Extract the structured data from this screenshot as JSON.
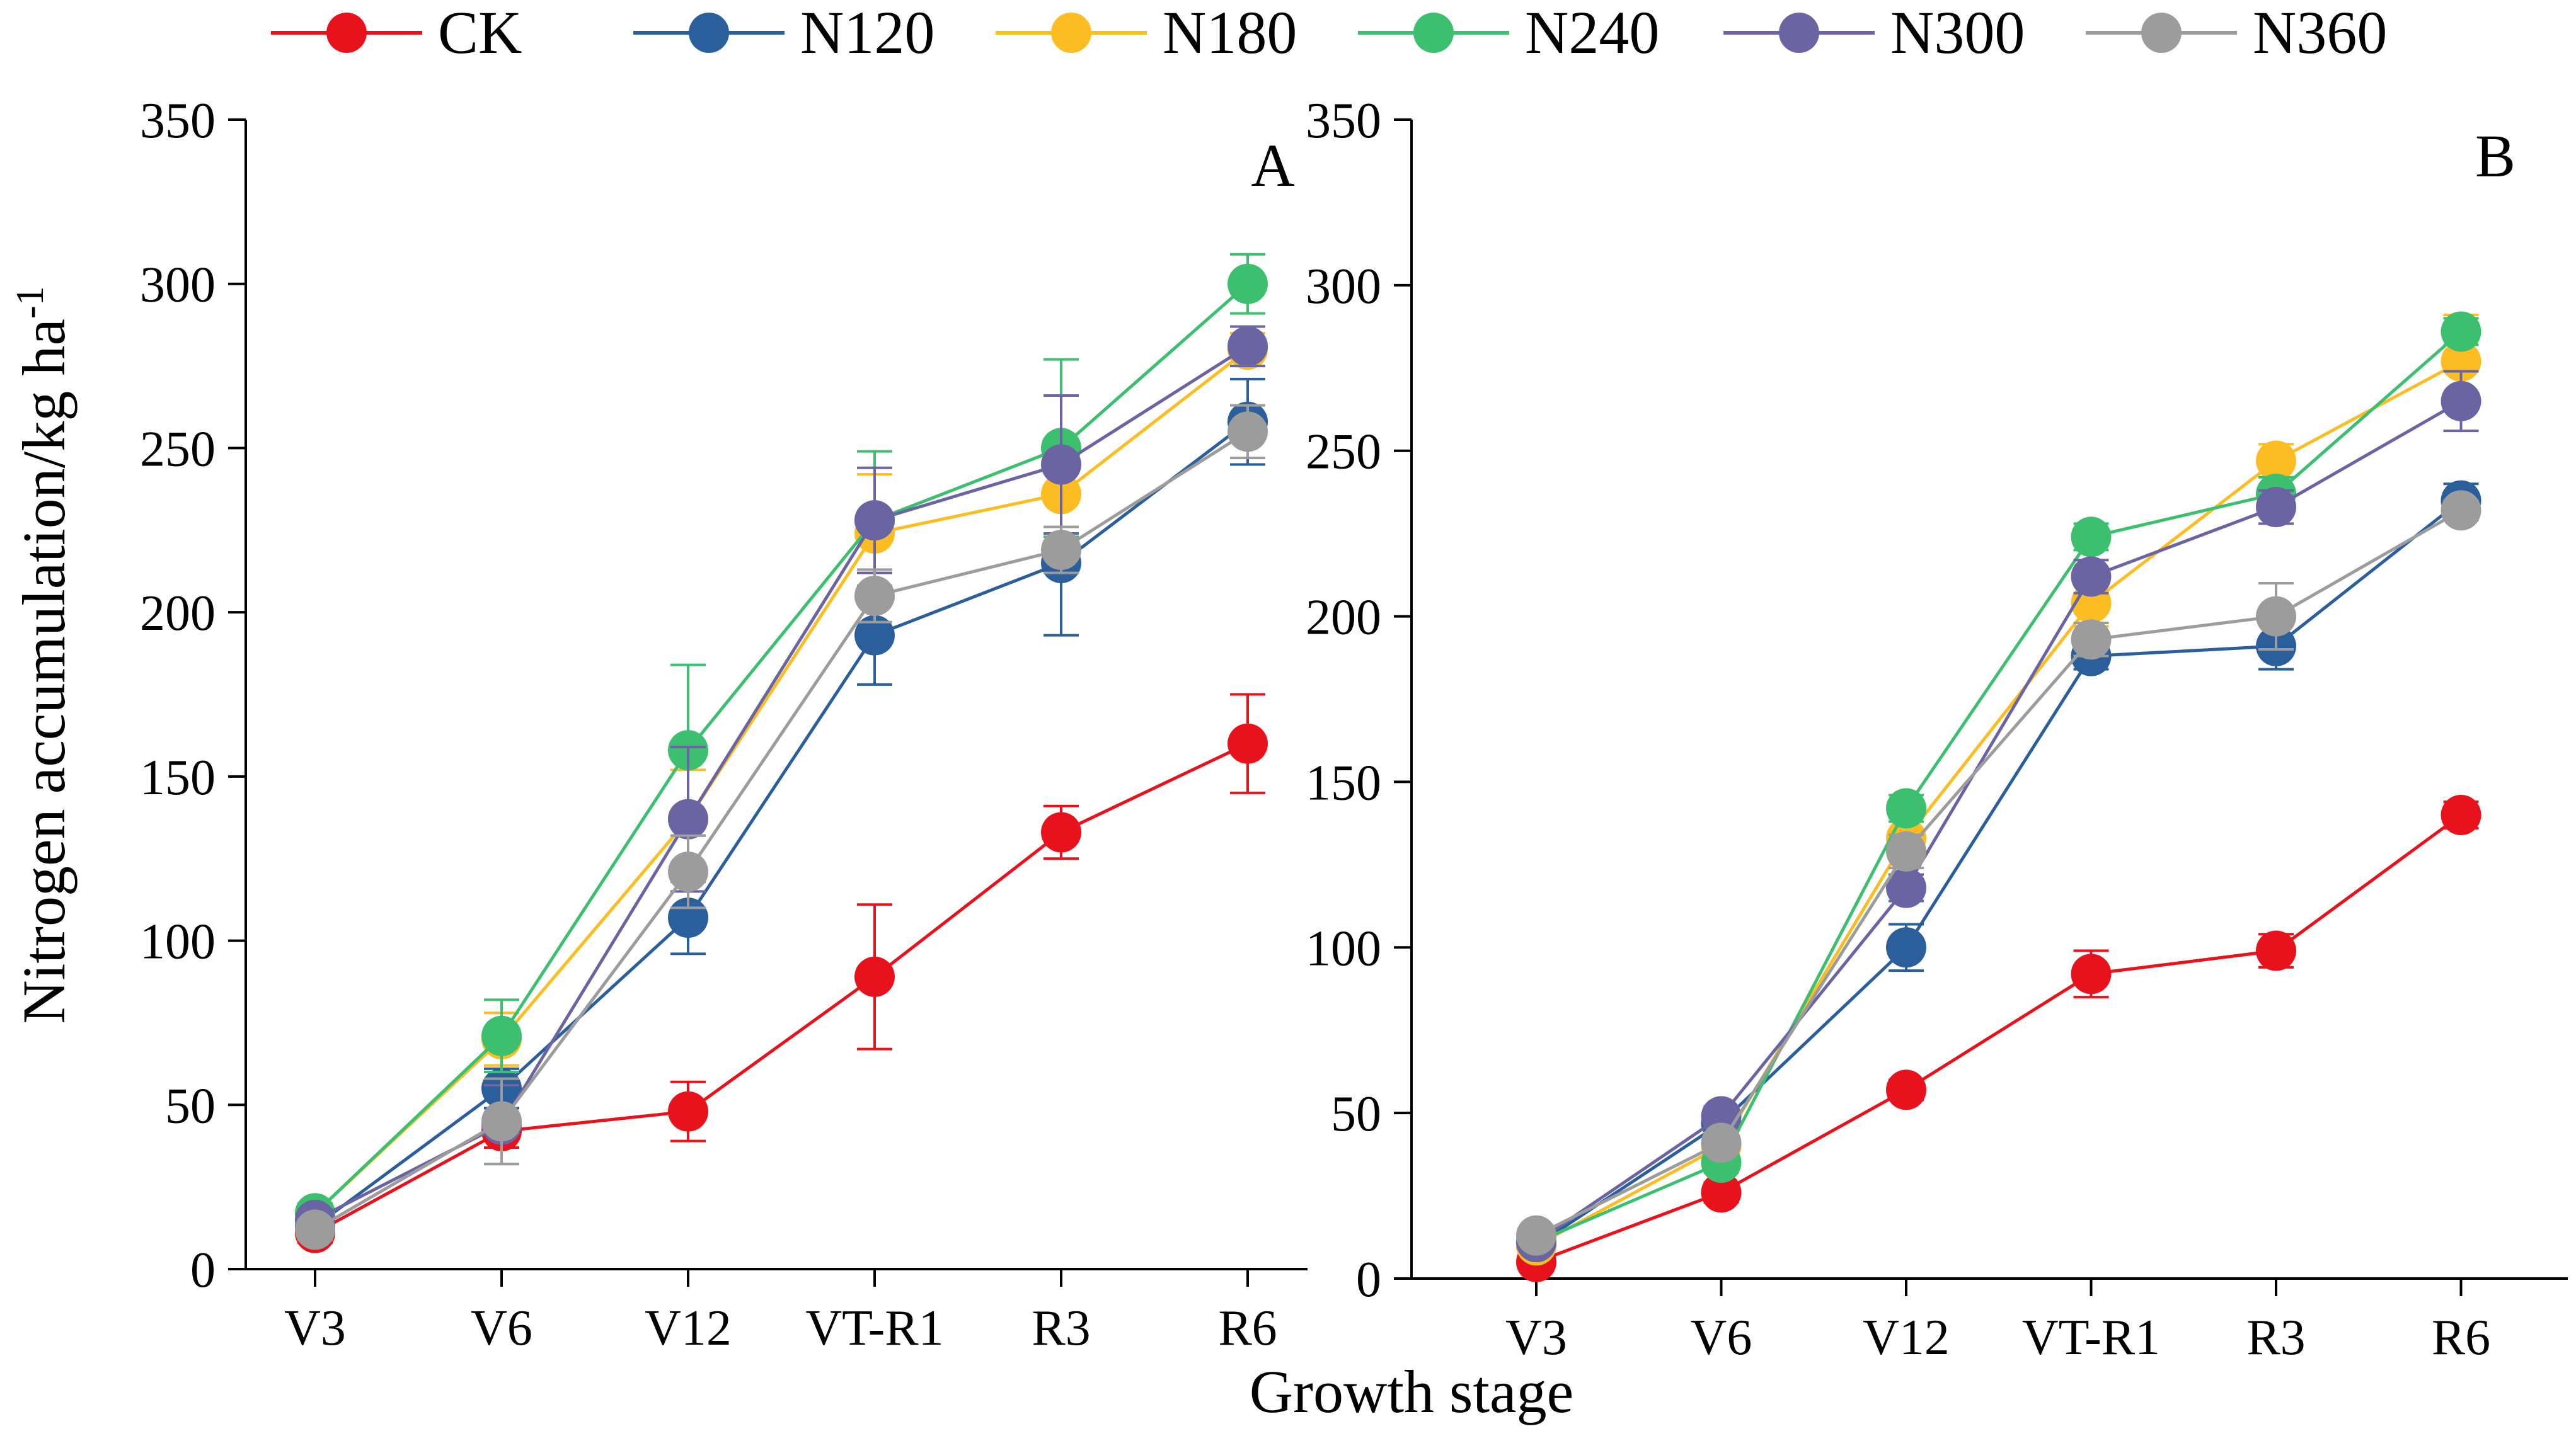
{
  "figure": {
    "ylabel_main": "Nitrogen accumulation/kg ha",
    "ylabel_sup": "-1",
    "xlabel": "Growth stage"
  },
  "legend": [
    {
      "name": "CK",
      "color": "#e8121c"
    },
    {
      "name": "N120",
      "color": "#2b5f9c"
    },
    {
      "name": "N180",
      "color": "#fcbd23"
    },
    {
      "name": "N240",
      "color": "#3cbf6e"
    },
    {
      "name": "N300",
      "color": "#6a64a3"
    },
    {
      "name": "N360",
      "color": "#9c9c9c"
    }
  ],
  "chart_data": [
    {
      "type": "line",
      "panel_label": "A",
      "categories": [
        "V3",
        "V6",
        "V12",
        "VT-R1",
        "R3",
        "R6"
      ],
      "ylim": [
        0,
        350
      ],
      "yticks": [
        0,
        50,
        100,
        150,
        200,
        250,
        300,
        350
      ],
      "series": [
        {
          "name": "CK",
          "values": [
            11,
            42,
            48,
            89,
            133,
            160
          ],
          "errors": [
            3,
            5,
            9,
            22,
            8,
            15
          ]
        },
        {
          "name": "N120",
          "values": [
            13,
            55,
            107,
            193,
            215,
            258
          ],
          "errors": [
            3,
            6,
            11,
            15,
            22,
            13
          ]
        },
        {
          "name": "N180",
          "values": [
            17,
            70,
            137,
            224,
            236,
            280
          ],
          "errors": [
            3,
            8,
            15,
            18,
            16,
            5
          ]
        },
        {
          "name": "N240",
          "values": [
            17,
            71,
            158,
            228,
            250,
            300
          ],
          "errors": [
            3,
            11,
            26,
            21,
            27,
            9
          ]
        },
        {
          "name": "N300",
          "values": [
            15,
            44,
            137,
            228,
            245,
            281
          ],
          "errors": [
            3,
            12,
            22,
            16,
            21,
            6
          ]
        },
        {
          "name": "N360",
          "values": [
            12,
            45,
            121,
            205,
            219,
            255
          ],
          "errors": [
            3,
            13,
            11,
            8,
            7,
            8
          ]
        }
      ]
    },
    {
      "type": "line",
      "panel_label": "B",
      "categories": [
        "V3",
        "V6",
        "V12",
        "VT-R1",
        "R3",
        "R6"
      ],
      "ylim": [
        0,
        350
      ],
      "yticks": [
        0,
        50,
        100,
        150,
        200,
        250,
        300,
        350
      ],
      "series": [
        {
          "name": "CK",
          "values": [
            5,
            26,
            57,
            92,
            99,
            140
          ],
          "errors": [
            2,
            3,
            3,
            7,
            5,
            4
          ]
        },
        {
          "name": "N120",
          "values": [
            10,
            47,
            100,
            188,
            191,
            235
          ],
          "errors": [
            2,
            3,
            7,
            4,
            7,
            5
          ]
        },
        {
          "name": "N180",
          "values": [
            10,
            40,
            133,
            204,
            247,
            277
          ],
          "errors": [
            2,
            4,
            6,
            7,
            5,
            14
          ]
        },
        {
          "name": "N240",
          "values": [
            11,
            35,
            142,
            224,
            237,
            286
          ],
          "errors": [
            2,
            3,
            4,
            4,
            5,
            4
          ]
        },
        {
          "name": "N300",
          "values": [
            11,
            49,
            118,
            212,
            233,
            265
          ],
          "errors": [
            2,
            3,
            4,
            5,
            5,
            9
          ]
        },
        {
          "name": "N360",
          "values": [
            13,
            41,
            129,
            193,
            200,
            232
          ],
          "errors": [
            2,
            3,
            5,
            5,
            10,
            3
          ]
        }
      ]
    }
  ]
}
